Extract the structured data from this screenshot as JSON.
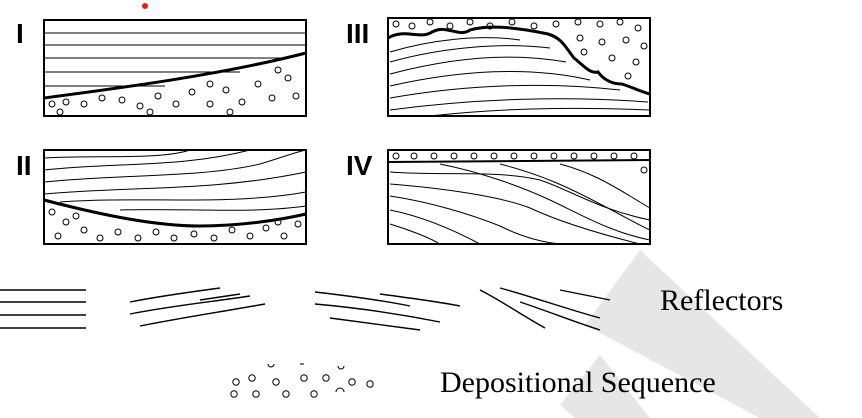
{
  "panels": [
    {
      "id": "panel-1",
      "label": "I"
    },
    {
      "id": "panel-3",
      "label": "III"
    },
    {
      "id": "panel-2",
      "label": "II"
    },
    {
      "id": "panel-4",
      "label": "IV"
    }
  ],
  "legend": {
    "reflectors_label": "Reflectors",
    "depositional_label": "Depositional Sequence"
  },
  "colors": {
    "ink": "#000000",
    "marker": "#e02020",
    "watermark": "#e6e6e6"
  }
}
